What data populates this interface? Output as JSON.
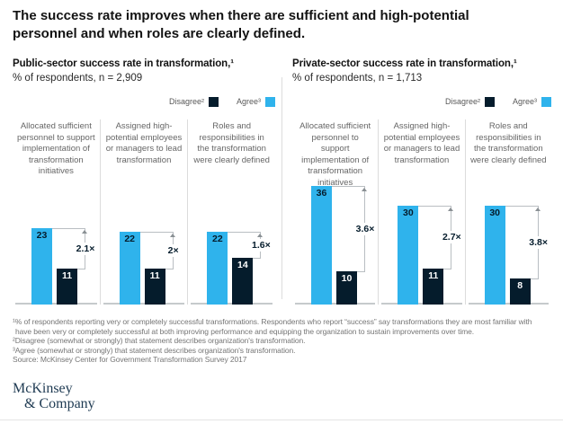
{
  "page": {
    "title_line1": "The success rate improves when there are sufficient and high-potential",
    "title_line2": "personnel and when roles are clearly defined."
  },
  "colors": {
    "agree": "#2FB3EC",
    "disagree": "#051C2C"
  },
  "legend": {
    "disagree_label": "Disagree²",
    "agree_label": "Agree³"
  },
  "chart_data": [
    {
      "type": "bar",
      "title": "Public-sector success rate in transformation,¹",
      "subtitle": "% of respondents, n = 2,909",
      "legend": [
        "Disagree²",
        "Agree³"
      ],
      "ylabel": "% of respondents",
      "ylim": [
        0,
        40
      ],
      "groups": [
        {
          "label": "Allocated sufficient personnel to support implementation of transformation initiatives",
          "agree": 23,
          "disagree": 11,
          "multiplier": "2.1×"
        },
        {
          "label": "Assigned high-potential employees or managers to lead transformation",
          "agree": 22,
          "disagree": 11,
          "multiplier": "2×"
        },
        {
          "label": "Roles and responsibilities in the transformation were clearly defined",
          "agree": 22,
          "disagree": 14,
          "multiplier": "1.6×"
        }
      ]
    },
    {
      "type": "bar",
      "title": "Private-sector success rate in transformation,¹",
      "subtitle": "% of respondents, n = 1,713",
      "legend": [
        "Disagree²",
        "Agree³"
      ],
      "ylabel": "% of respondents",
      "ylim": [
        0,
        40
      ],
      "groups": [
        {
          "label": "Allocated sufficient personnel to support implementation of transformation initiatives",
          "agree": 36,
          "disagree": 10,
          "multiplier": "3.6×"
        },
        {
          "label": "Assigned high-potential employees or managers to lead transformation",
          "agree": 30,
          "disagree": 11,
          "multiplier": "2.7×"
        },
        {
          "label": "Roles and responsibilities in the transformation were clearly defined",
          "agree": 30,
          "disagree": 8,
          "multiplier": "3.8×"
        }
      ]
    }
  ],
  "footnotes": {
    "fn1_line1": "¹% of respondents reporting very or completely successful transformations. Respondents who report “success” say transformations they are most familiar with",
    "fn1_line2": "have been very or completely successful at both improving performance and equipping the organization to sustain improvements over time.",
    "fn2": "²Disagree (somewhat or strongly) that statement describes organization's transformation.",
    "fn3": "³Agree (somewhat or strongly) that statement describes organization's transformation.",
    "source": "Source: McKinsey Center for Government Transformation Survey 2017"
  },
  "logo": {
    "line1": "McKinsey",
    "line2": "& Company"
  }
}
